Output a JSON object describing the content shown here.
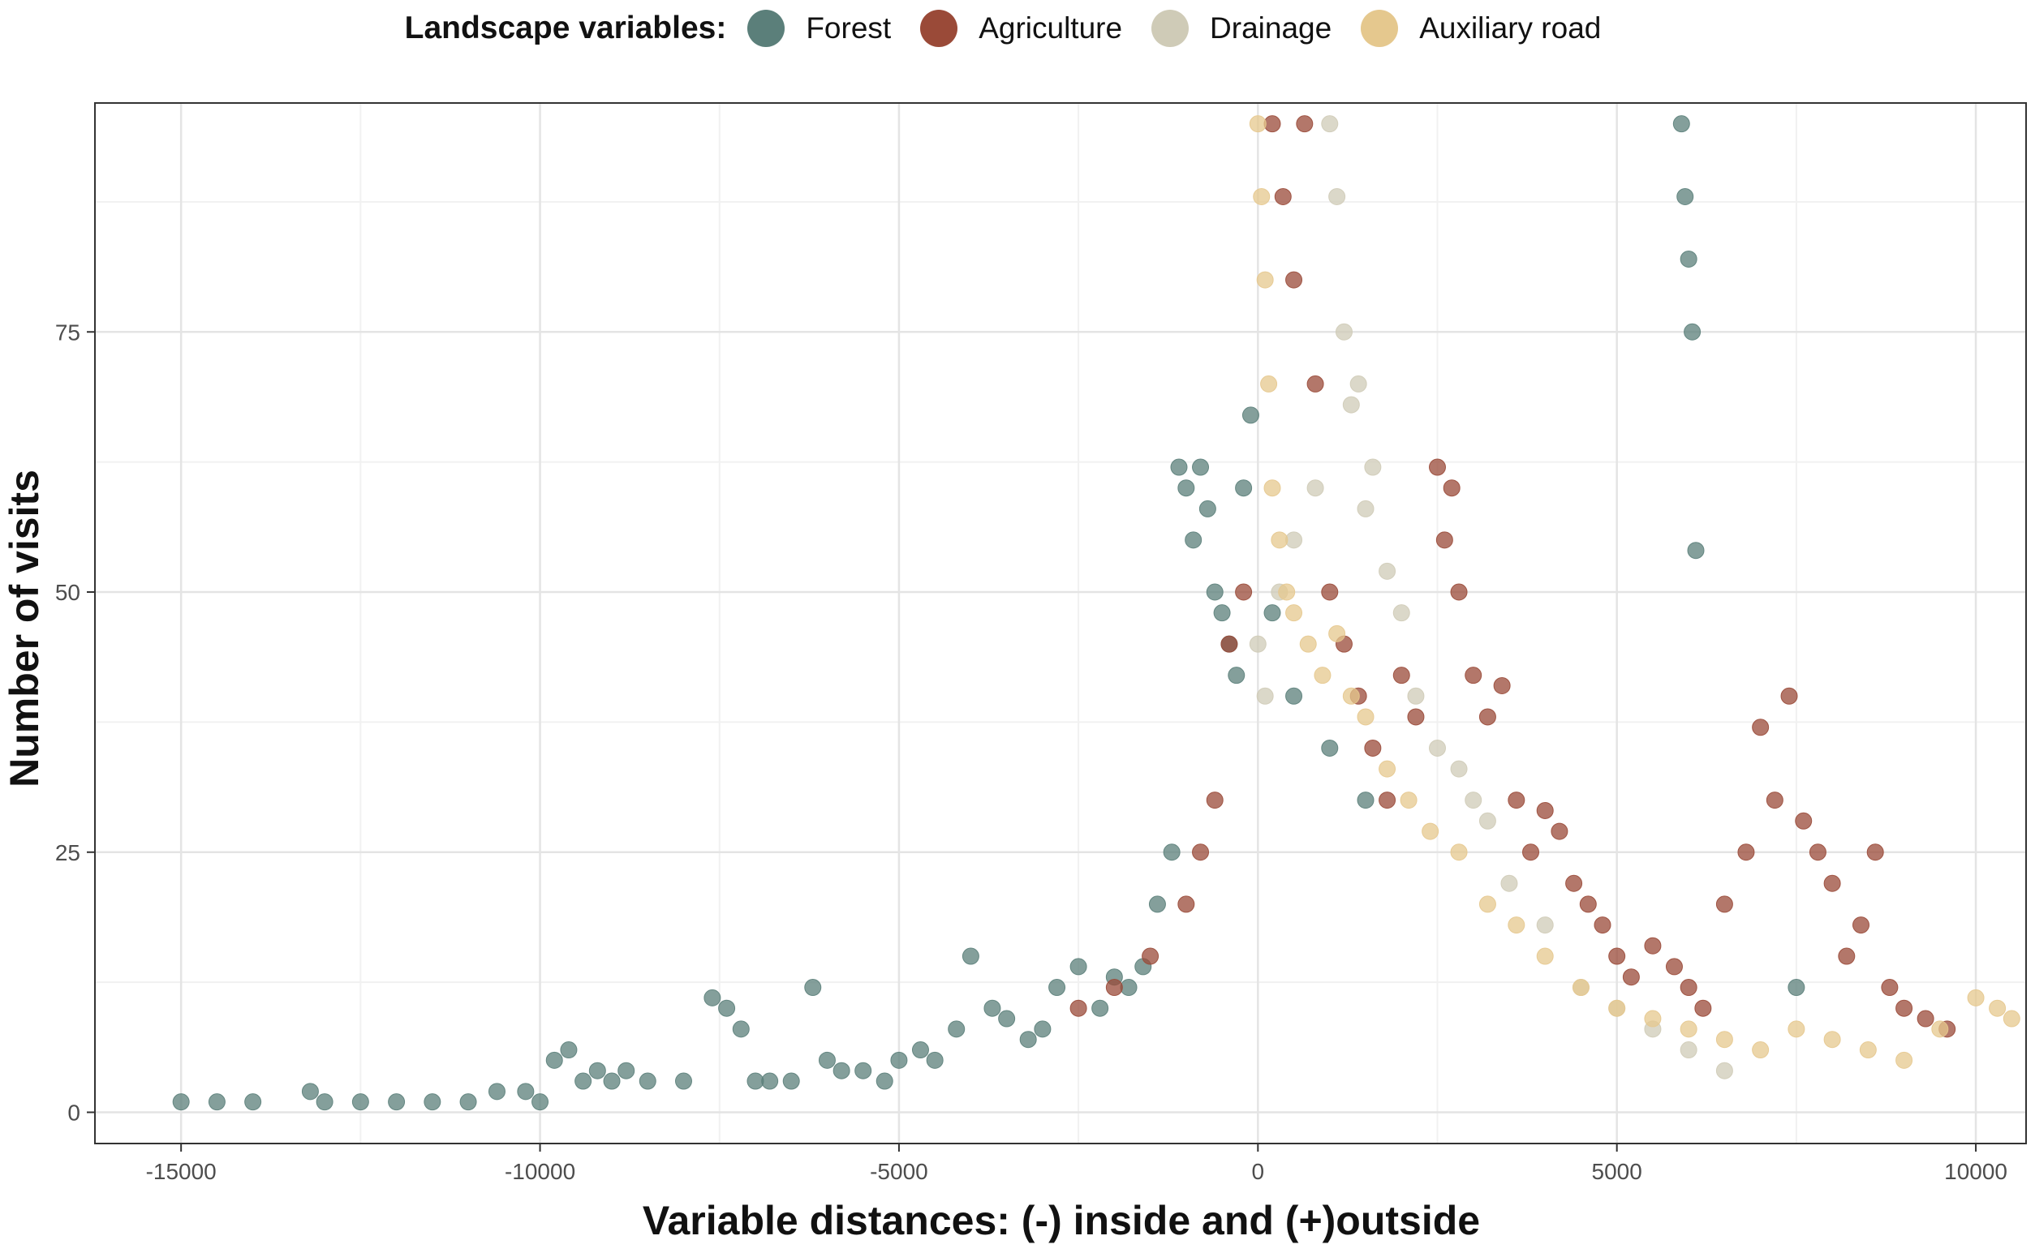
{
  "legend": {
    "title": "Landscape variables:",
    "items": [
      {
        "label": "Forest",
        "color": "#5b7f7a"
      },
      {
        "label": "Agriculture",
        "color": "#9a4a38"
      },
      {
        "label": "Drainage",
        "color": "#cfcbb7"
      },
      {
        "label": "Auxiliary road",
        "color": "#e5c88e"
      }
    ]
  },
  "chart_data": {
    "type": "scatter",
    "xlabel": "Variable distances: (-) inside and (+)outside",
    "ylabel": "Number of visits",
    "xlim": [
      -16200,
      10700
    ],
    "ylim": [
      -3,
      97
    ],
    "x_ticks": [
      -15000,
      -10000,
      -5000,
      0,
      5000,
      10000
    ],
    "x_tick_labels": [
      "-15000",
      "-10000",
      "-5000",
      "0",
      "5000",
      "10000"
    ],
    "y_ticks": [
      0,
      25,
      50,
      75
    ],
    "y_tick_labels": [
      "0",
      "25",
      "50",
      "75"
    ],
    "grid": true,
    "legend_position": "top",
    "series": [
      {
        "name": "Forest",
        "color": "#5b7f7a",
        "x": [
          -15000,
          -14500,
          -14000,
          -13200,
          -13000,
          -12500,
          -12000,
          -11500,
          -11000,
          -10600,
          -10200,
          -10000,
          -9800,
          -9600,
          -9400,
          -9200,
          -9000,
          -8800,
          -8500,
          -8000,
          -7600,
          -7400,
          -7200,
          -7000,
          -6800,
          -6500,
          -6200,
          -6000,
          -5800,
          -5500,
          -5200,
          -5000,
          -4700,
          -4500,
          -4200,
          -4000,
          -3700,
          -3500,
          -3200,
          -3000,
          -2800,
          -2500,
          -2200,
          -2000,
          -1800,
          -1600,
          -1400,
          -1200,
          -1100,
          -1000,
          -900,
          -800,
          -700,
          -600,
          -500,
          -400,
          -300,
          -200,
          -100,
          200,
          500,
          1000,
          1500,
          5900,
          5950,
          6000,
          6050,
          6100,
          7500
        ],
        "y": [
          1,
          1,
          1,
          2,
          1,
          1,
          1,
          1,
          1,
          2,
          2,
          1,
          5,
          6,
          3,
          4,
          3,
          4,
          3,
          3,
          11,
          10,
          8,
          3,
          3,
          3,
          12,
          5,
          4,
          4,
          3,
          5,
          6,
          5,
          8,
          15,
          10,
          9,
          7,
          8,
          12,
          14,
          10,
          13,
          12,
          14,
          20,
          25,
          62,
          60,
          55,
          62,
          58,
          50,
          48,
          45,
          42,
          60,
          67,
          48,
          40,
          35,
          30,
          95,
          88,
          82,
          75,
          54,
          12
        ]
      },
      {
        "name": "Agriculture",
        "color": "#9a4a38",
        "x": [
          -2500,
          -2000,
          -1500,
          -1000,
          -800,
          -600,
          -400,
          -200,
          200,
          350,
          500,
          650,
          800,
          1000,
          1200,
          1400,
          1600,
          1800,
          2000,
          2200,
          2500,
          2600,
          2700,
          2800,
          3000,
          3200,
          3400,
          3600,
          3800,
          4000,
          4200,
          4400,
          4600,
          4800,
          5000,
          5200,
          5500,
          5800,
          6000,
          6200,
          6500,
          6800,
          7000,
          7200,
          7400,
          7600,
          7800,
          8000,
          8200,
          8400,
          8600,
          8800,
          9000,
          9300,
          9600
        ],
        "y": [
          10,
          12,
          15,
          20,
          25,
          30,
          45,
          50,
          95,
          88,
          80,
          95,
          70,
          50,
          45,
          40,
          35,
          30,
          42,
          38,
          62,
          55,
          60,
          50,
          42,
          38,
          41,
          30,
          25,
          29,
          27,
          22,
          20,
          18,
          15,
          13,
          16,
          14,
          12,
          10,
          20,
          25,
          37,
          30,
          40,
          28,
          25,
          22,
          15,
          18,
          25,
          12,
          10,
          9,
          8
        ]
      },
      {
        "name": "Drainage",
        "color": "#cfcbb7",
        "x": [
          0,
          100,
          300,
          500,
          800,
          1000,
          1100,
          1200,
          1300,
          1400,
          1500,
          1600,
          1800,
          2000,
          2200,
          2500,
          2800,
          3000,
          3200,
          3500,
          4000,
          4500,
          5000,
          5500,
          6000,
          6500
        ],
        "y": [
          45,
          40,
          50,
          55,
          60,
          95,
          88,
          75,
          68,
          70,
          58,
          62,
          52,
          48,
          40,
          35,
          33,
          30,
          28,
          22,
          18,
          12,
          10,
          8,
          6,
          4
        ]
      },
      {
        "name": "Auxiliary road",
        "color": "#e5c88e",
        "x": [
          0,
          50,
          100,
          150,
          200,
          300,
          400,
          500,
          700,
          900,
          1100,
          1300,
          1500,
          1800,
          2100,
          2400,
          2800,
          3200,
          3600,
          4000,
          4500,
          5000,
          5500,
          6000,
          6500,
          7000,
          7500,
          8000,
          8500,
          9000,
          9500,
          10000,
          10300,
          10500
        ],
        "y": [
          95,
          88,
          80,
          70,
          60,
          55,
          50,
          48,
          45,
          42,
          46,
          40,
          38,
          33,
          30,
          27,
          25,
          20,
          18,
          15,
          12,
          10,
          9,
          8,
          7,
          6,
          8,
          7,
          6,
          5,
          8,
          11,
          10,
          9
        ]
      }
    ]
  }
}
